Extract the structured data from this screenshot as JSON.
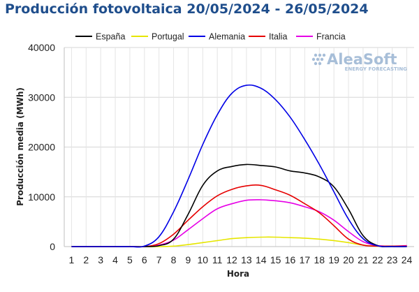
{
  "chart_data": {
    "type": "line",
    "title": "Producción fotovoltaica 20/05/2024 - 26/05/2024",
    "xlabel": "Hora",
    "ylabel": "Producción media (MWh)",
    "x": [
      1,
      2,
      3,
      4,
      5,
      6,
      7,
      8,
      9,
      10,
      11,
      12,
      13,
      14,
      15,
      16,
      17,
      18,
      19,
      20,
      21,
      22,
      23,
      24
    ],
    "ylim": [
      0,
      40000
    ],
    "yticks": [
      0,
      10000,
      20000,
      30000,
      40000
    ],
    "ytick_labels": [
      "0",
      "10000",
      "20000",
      "30000",
      "40000"
    ],
    "grid": true,
    "legend_position": "top",
    "series": [
      {
        "name": "España",
        "color": "#000000",
        "values": [
          0,
          0,
          0,
          0,
          0,
          0,
          200,
          1500,
          6500,
          12300,
          15200,
          16100,
          16500,
          16300,
          16000,
          15200,
          14800,
          14000,
          12000,
          7500,
          2200,
          200,
          0,
          0
        ]
      },
      {
        "name": "Portugal",
        "color": "#e6e600",
        "values": [
          0,
          0,
          0,
          0,
          0,
          0,
          0,
          100,
          400,
          800,
          1200,
          1600,
          1800,
          1900,
          1900,
          1800,
          1700,
          1500,
          1200,
          800,
          300,
          50,
          0,
          0
        ]
      },
      {
        "name": "Alemania",
        "color": "#0000e6",
        "values": [
          0,
          0,
          0,
          0,
          0,
          100,
          2000,
          7000,
          13500,
          20500,
          26500,
          30800,
          32400,
          31800,
          29500,
          26000,
          21500,
          16500,
          11000,
          5500,
          1600,
          150,
          0,
          0
        ]
      },
      {
        "name": "Italia",
        "color": "#e60000",
        "values": [
          0,
          0,
          0,
          0,
          0,
          0,
          600,
          2500,
          5300,
          8000,
          10200,
          11500,
          12200,
          12300,
          11400,
          10300,
          8600,
          6800,
          4200,
          1500,
          300,
          100,
          100,
          100
        ]
      },
      {
        "name": "Francia",
        "color": "#e600e6",
        "values": [
          0,
          0,
          0,
          0,
          0,
          0,
          300,
          1300,
          3400,
          5600,
          7600,
          8600,
          9300,
          9400,
          9200,
          8800,
          8000,
          7000,
          5300,
          3000,
          1000,
          200,
          100,
          200
        ]
      }
    ]
  },
  "watermark": {
    "main": "AleaSoft",
    "sub": "ENERGY FORECASTING"
  }
}
